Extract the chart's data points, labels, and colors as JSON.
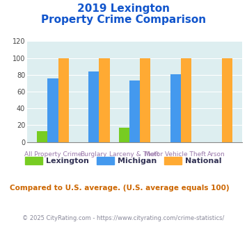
{
  "title_line1": "2019 Lexington",
  "title_line2": "Property Crime Comparison",
  "categories": [
    "All Property Crime",
    "Burglary",
    "Larceny & Theft",
    "Motor Vehicle Theft",
    "Arson"
  ],
  "x_top_labels": [
    "",
    "Burglary",
    "Larceny & Theft",
    "Motor Vehicle Theft",
    "Arson"
  ],
  "x_bot_labels": [
    "All Property Crime",
    "",
    "",
    "",
    ""
  ],
  "lexington": [
    13,
    0,
    17,
    0,
    0
  ],
  "michigan": [
    76,
    84,
    73,
    81,
    0
  ],
  "national": [
    100,
    100,
    100,
    100,
    100
  ],
  "bar_color_lexington": "#77cc22",
  "bar_color_michigan": "#4499ee",
  "bar_color_national": "#ffaa33",
  "ylim": [
    0,
    120
  ],
  "yticks": [
    0,
    20,
    40,
    60,
    80,
    100,
    120
  ],
  "bg_color": "#ddeef0",
  "title_color": "#1155cc",
  "xlabel_color": "#9977aa",
  "footer_color": "#888899",
  "note_color": "#cc6600",
  "note_text": "Compared to U.S. average. (U.S. average equals 100)",
  "footer_text": "© 2025 CityRating.com - https://www.cityrating.com/crime-statistics/",
  "legend_labels": [
    "Lexington",
    "Michigan",
    "National"
  ],
  "legend_text_color": "#333355"
}
